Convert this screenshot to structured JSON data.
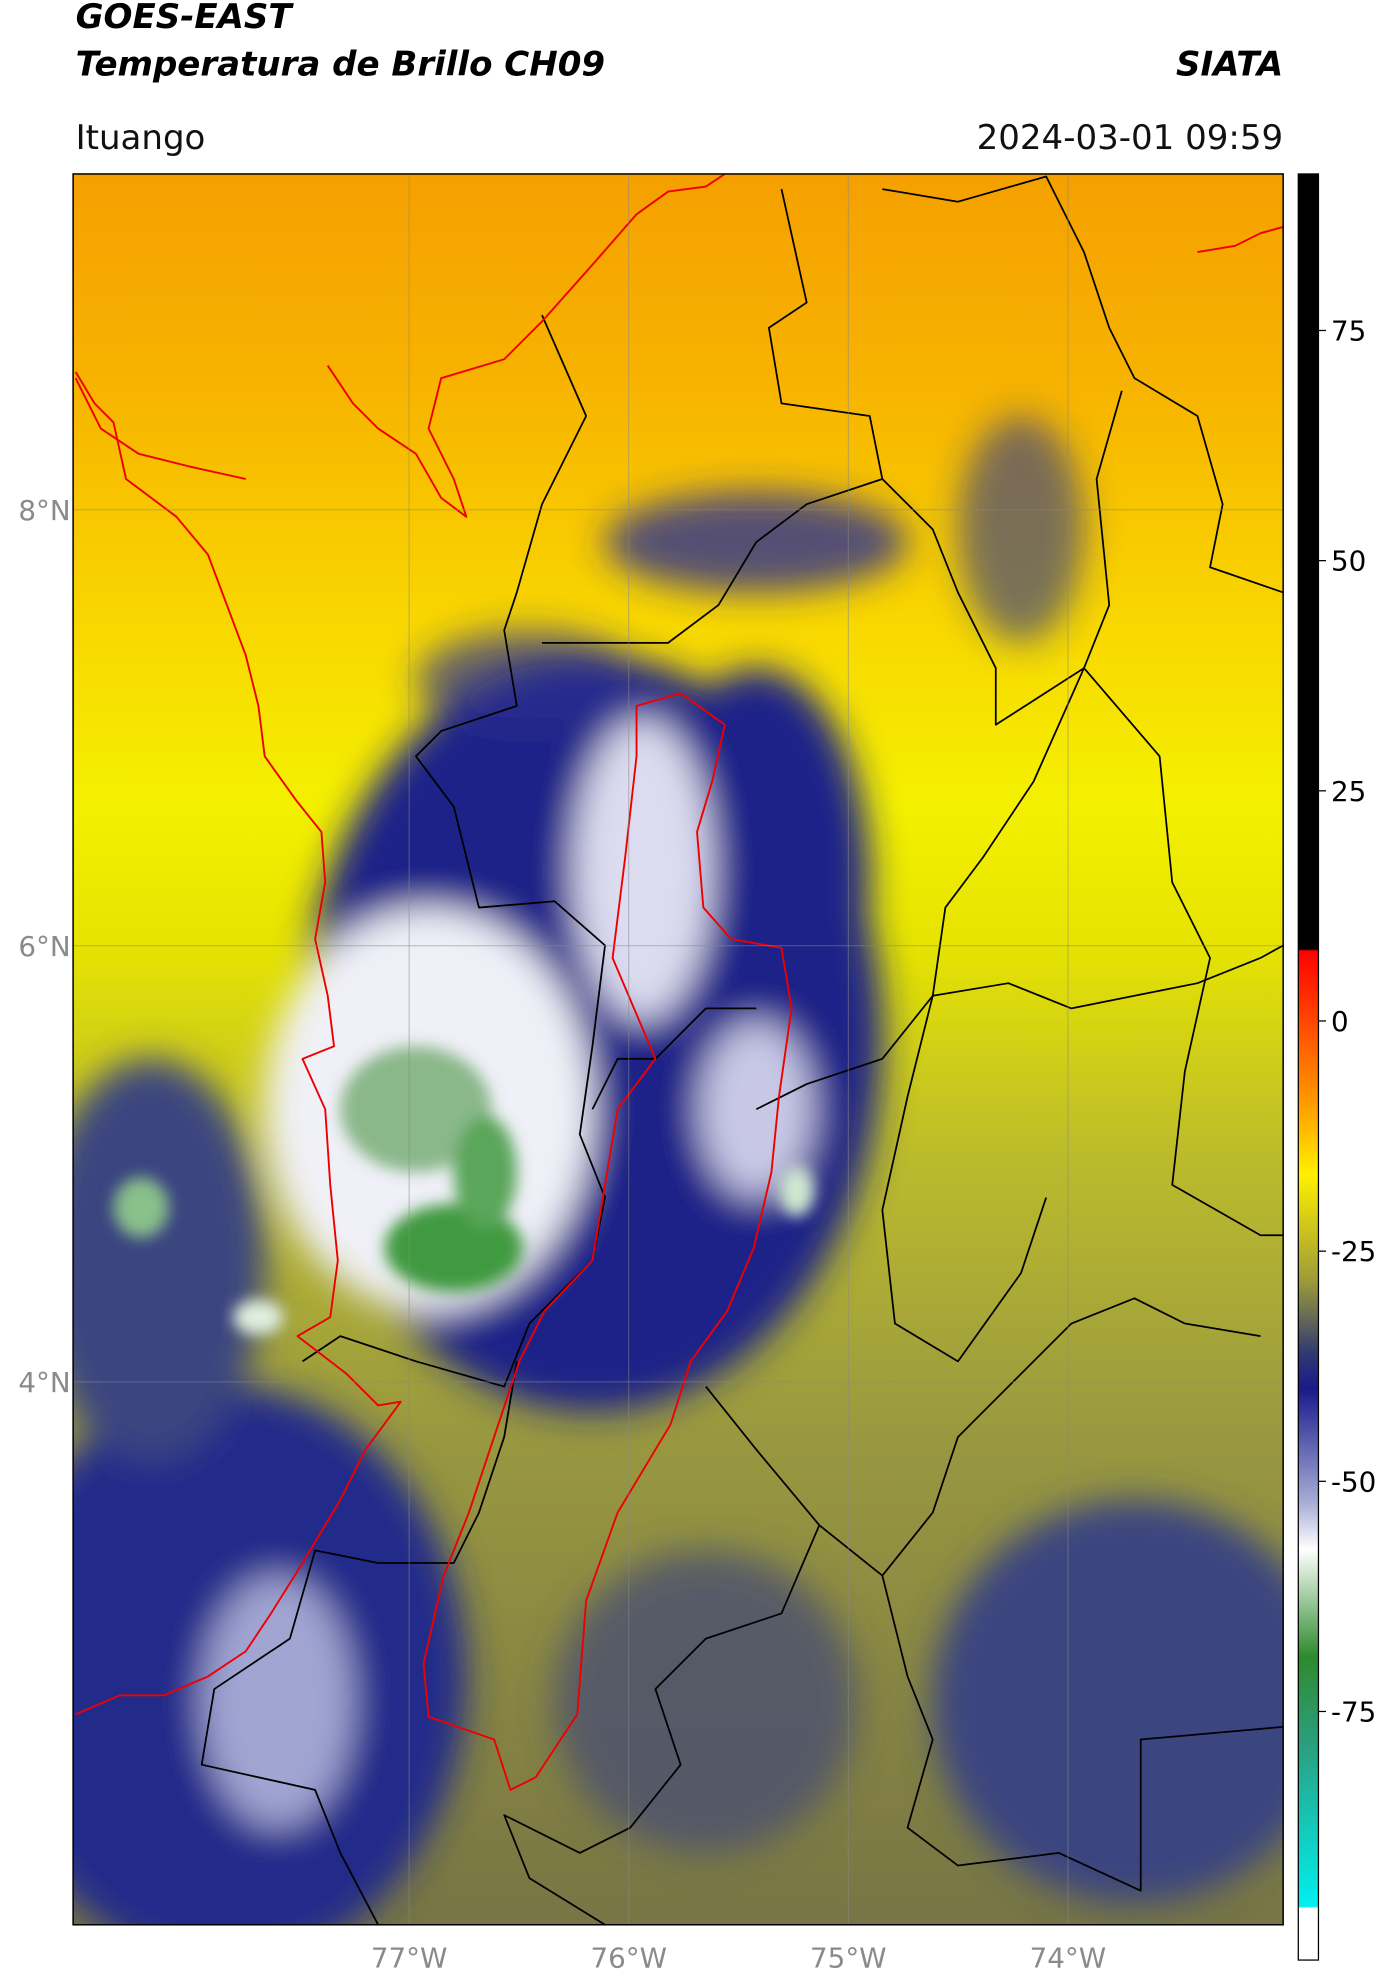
{
  "chart_data": {
    "type": "map",
    "title": "GOES-EAST",
    "subtitle": "Temperatura de Brillo CH09",
    "source": "SIATA",
    "region": "Ituango",
    "datetime": "2024-03-01 09:59",
    "xlim": [
      -78.53,
      -73.02
    ],
    "ylim": [
      1.51,
      9.54
    ],
    "xticks": [
      {
        "value": -77,
        "label": "77°W"
      },
      {
        "value": -76,
        "label": "76°W"
      },
      {
        "value": -75,
        "label": "75°W"
      },
      {
        "value": -74,
        "label": "74°W"
      }
    ],
    "yticks": [
      {
        "value": 4,
        "label": "4°N"
      },
      {
        "value": 6,
        "label": "6°N"
      },
      {
        "value": 8,
        "label": "8°N"
      }
    ],
    "grid": true,
    "colorbar": {
      "lim": [
        -102,
        92
      ],
      "ticks": [
        75,
        50,
        25,
        0,
        -25,
        -50,
        -75
      ]
    }
  }
}
